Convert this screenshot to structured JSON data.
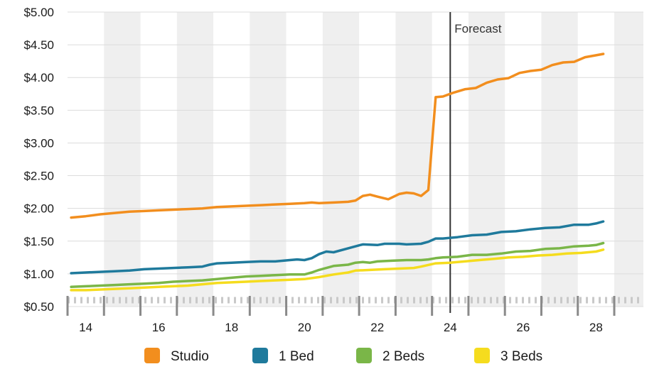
{
  "chart_data": {
    "type": "line",
    "title": "",
    "xlabel": "",
    "ylabel": "",
    "xlim": [
      13.5,
      29.3
    ],
    "ylim": [
      0.5,
      5.0
    ],
    "yticks": [
      {
        "value": 0.5,
        "label": "$0.50"
      },
      {
        "value": 1.0,
        "label": "$1.00"
      },
      {
        "value": 1.5,
        "label": "$1.50"
      },
      {
        "value": 2.0,
        "label": "$2.00"
      },
      {
        "value": 2.5,
        "label": "$2.50"
      },
      {
        "value": 3.0,
        "label": "$3.00"
      },
      {
        "value": 3.5,
        "label": "$3.50"
      },
      {
        "value": 4.0,
        "label": "$4.00"
      },
      {
        "value": 4.5,
        "label": "$4.50"
      },
      {
        "value": 5.0,
        "label": "$5.00"
      }
    ],
    "xticks": [
      {
        "value": 14,
        "label": "14"
      },
      {
        "value": 16,
        "label": "16"
      },
      {
        "value": 18,
        "label": "18"
      },
      {
        "value": 20,
        "label": "20"
      },
      {
        "value": 22,
        "label": "22"
      },
      {
        "value": 24,
        "label": "24"
      },
      {
        "value": 26,
        "label": "26"
      },
      {
        "value": 28,
        "label": "28"
      }
    ],
    "grid": true,
    "legend_position": "bottom",
    "annotation": {
      "x": 24,
      "label": "Forecast"
    },
    "series": [
      {
        "name": "Studio",
        "color": "#f28e1e",
        "points": [
          [
            13.6,
            1.86
          ],
          [
            14.0,
            1.88
          ],
          [
            14.4,
            1.91
          ],
          [
            14.8,
            1.93
          ],
          [
            15.2,
            1.95
          ],
          [
            15.6,
            1.96
          ],
          [
            16.0,
            1.97
          ],
          [
            16.4,
            1.98
          ],
          [
            16.8,
            1.99
          ],
          [
            17.2,
            2.0
          ],
          [
            17.6,
            2.02
          ],
          [
            18.0,
            2.03
          ],
          [
            18.4,
            2.04
          ],
          [
            18.8,
            2.05
          ],
          [
            19.2,
            2.06
          ],
          [
            19.6,
            2.07
          ],
          [
            20.0,
            2.08
          ],
          [
            20.2,
            2.09
          ],
          [
            20.4,
            2.08
          ],
          [
            20.8,
            2.09
          ],
          [
            21.2,
            2.1
          ],
          [
            21.4,
            2.12
          ],
          [
            21.6,
            2.19
          ],
          [
            21.8,
            2.21
          ],
          [
            22.0,
            2.18
          ],
          [
            22.3,
            2.14
          ],
          [
            22.6,
            2.22
          ],
          [
            22.8,
            2.24
          ],
          [
            23.0,
            2.23
          ],
          [
            23.2,
            2.19
          ],
          [
            23.4,
            2.28
          ],
          [
            23.6,
            3.7
          ],
          [
            23.8,
            3.71
          ],
          [
            24.1,
            3.77
          ],
          [
            24.4,
            3.82
          ],
          [
            24.7,
            3.84
          ],
          [
            25.0,
            3.92
          ],
          [
            25.3,
            3.97
          ],
          [
            25.6,
            3.99
          ],
          [
            25.9,
            4.07
          ],
          [
            26.2,
            4.1
          ],
          [
            26.5,
            4.12
          ],
          [
            26.8,
            4.19
          ],
          [
            27.1,
            4.23
          ],
          [
            27.4,
            4.24
          ],
          [
            27.7,
            4.31
          ],
          [
            28.0,
            4.34
          ],
          [
            28.2,
            4.36
          ]
        ]
      },
      {
        "name": "1 Bed",
        "color": "#1f7a9c",
        "points": [
          [
            13.6,
            1.01
          ],
          [
            14.0,
            1.02
          ],
          [
            14.4,
            1.03
          ],
          [
            14.8,
            1.04
          ],
          [
            15.2,
            1.05
          ],
          [
            15.6,
            1.07
          ],
          [
            16.0,
            1.08
          ],
          [
            16.4,
            1.09
          ],
          [
            16.8,
            1.1
          ],
          [
            17.2,
            1.11
          ],
          [
            17.4,
            1.14
          ],
          [
            17.6,
            1.16
          ],
          [
            18.0,
            1.17
          ],
          [
            18.4,
            1.18
          ],
          [
            18.8,
            1.19
          ],
          [
            19.2,
            1.19
          ],
          [
            19.6,
            1.21
          ],
          [
            19.8,
            1.22
          ],
          [
            20.0,
            1.21
          ],
          [
            20.2,
            1.24
          ],
          [
            20.4,
            1.3
          ],
          [
            20.6,
            1.34
          ],
          [
            20.8,
            1.33
          ],
          [
            21.2,
            1.39
          ],
          [
            21.6,
            1.45
          ],
          [
            22.0,
            1.44
          ],
          [
            22.2,
            1.46
          ],
          [
            22.6,
            1.46
          ],
          [
            22.8,
            1.45
          ],
          [
            23.2,
            1.46
          ],
          [
            23.4,
            1.49
          ],
          [
            23.6,
            1.54
          ],
          [
            23.8,
            1.54
          ],
          [
            24.2,
            1.56
          ],
          [
            24.6,
            1.59
          ],
          [
            25.0,
            1.6
          ],
          [
            25.4,
            1.64
          ],
          [
            25.8,
            1.65
          ],
          [
            26.2,
            1.68
          ],
          [
            26.6,
            1.7
          ],
          [
            27.0,
            1.71
          ],
          [
            27.4,
            1.75
          ],
          [
            27.8,
            1.75
          ],
          [
            28.0,
            1.77
          ],
          [
            28.2,
            1.8
          ]
        ]
      },
      {
        "name": "2 Beds",
        "color": "#7ab648",
        "points": [
          [
            13.6,
            0.8
          ],
          [
            14.0,
            0.81
          ],
          [
            14.4,
            0.82
          ],
          [
            14.8,
            0.83
          ],
          [
            15.2,
            0.84
          ],
          [
            15.6,
            0.85
          ],
          [
            16.0,
            0.86
          ],
          [
            16.4,
            0.88
          ],
          [
            16.8,
            0.89
          ],
          [
            17.2,
            0.9
          ],
          [
            17.6,
            0.92
          ],
          [
            18.0,
            0.94
          ],
          [
            18.4,
            0.96
          ],
          [
            18.8,
            0.97
          ],
          [
            19.2,
            0.98
          ],
          [
            19.6,
            0.99
          ],
          [
            20.0,
            0.99
          ],
          [
            20.2,
            1.02
          ],
          [
            20.4,
            1.06
          ],
          [
            20.8,
            1.12
          ],
          [
            21.2,
            1.14
          ],
          [
            21.4,
            1.17
          ],
          [
            21.6,
            1.18
          ],
          [
            21.8,
            1.17
          ],
          [
            22.0,
            1.19
          ],
          [
            22.4,
            1.2
          ],
          [
            22.8,
            1.21
          ],
          [
            23.2,
            1.21
          ],
          [
            23.4,
            1.22
          ],
          [
            23.6,
            1.24
          ],
          [
            23.8,
            1.25
          ],
          [
            24.2,
            1.26
          ],
          [
            24.6,
            1.29
          ],
          [
            25.0,
            1.29
          ],
          [
            25.4,
            1.31
          ],
          [
            25.8,
            1.34
          ],
          [
            26.2,
            1.35
          ],
          [
            26.6,
            1.38
          ],
          [
            27.0,
            1.39
          ],
          [
            27.4,
            1.42
          ],
          [
            27.8,
            1.43
          ],
          [
            28.0,
            1.44
          ],
          [
            28.2,
            1.47
          ]
        ]
      },
      {
        "name": "3 Beds",
        "color": "#f5dc1e",
        "points": [
          [
            13.6,
            0.75
          ],
          [
            14.0,
            0.75
          ],
          [
            14.4,
            0.76
          ],
          [
            14.8,
            0.77
          ],
          [
            15.2,
            0.78
          ],
          [
            15.6,
            0.79
          ],
          [
            16.0,
            0.8
          ],
          [
            16.4,
            0.81
          ],
          [
            16.8,
            0.82
          ],
          [
            17.2,
            0.84
          ],
          [
            17.6,
            0.86
          ],
          [
            18.0,
            0.87
          ],
          [
            18.4,
            0.88
          ],
          [
            18.8,
            0.89
          ],
          [
            19.2,
            0.9
          ],
          [
            19.6,
            0.91
          ],
          [
            20.0,
            0.92
          ],
          [
            20.4,
            0.95
          ],
          [
            20.8,
            0.99
          ],
          [
            21.2,
            1.02
          ],
          [
            21.4,
            1.05
          ],
          [
            21.8,
            1.06
          ],
          [
            22.2,
            1.07
          ],
          [
            22.6,
            1.08
          ],
          [
            23.0,
            1.09
          ],
          [
            23.2,
            1.11
          ],
          [
            23.6,
            1.16
          ],
          [
            24.0,
            1.17
          ],
          [
            24.4,
            1.19
          ],
          [
            24.8,
            1.21
          ],
          [
            25.2,
            1.23
          ],
          [
            25.6,
            1.25
          ],
          [
            26.0,
            1.26
          ],
          [
            26.4,
            1.28
          ],
          [
            26.8,
            1.29
          ],
          [
            27.2,
            1.31
          ],
          [
            27.6,
            1.32
          ],
          [
            28.0,
            1.34
          ],
          [
            28.2,
            1.37
          ]
        ]
      }
    ]
  }
}
